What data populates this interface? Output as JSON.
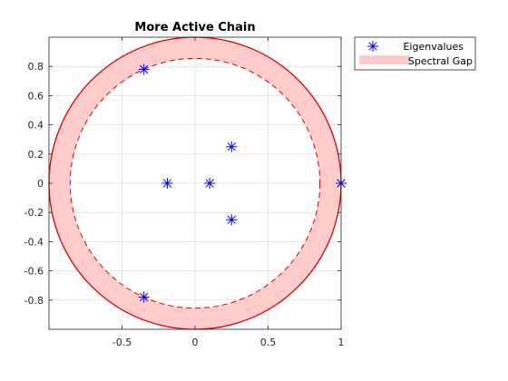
{
  "chart_data": {
    "type": "scatter",
    "title": "More Active Chain",
    "xlabel": "",
    "ylabel": "",
    "xlim": [
      -1,
      1
    ],
    "ylim": [
      -1,
      1
    ],
    "grid": true,
    "x_ticks": [
      -0.5,
      0,
      0.5,
      1
    ],
    "x_tick_labels": [
      "-0.5",
      "0",
      "0.5",
      "1"
    ],
    "y_ticks": [
      -0.8,
      -0.6,
      -0.4,
      -0.2,
      0,
      0.2,
      0.4,
      0.6,
      0.8
    ],
    "y_tick_labels": [
      "-0.8",
      "-0.6",
      "-0.4",
      "-0.2",
      "0",
      "0.2",
      "0.4",
      "0.6",
      "0.8"
    ],
    "legend_position": "outside-top-right",
    "series": [
      {
        "name": "Eigenvalues",
        "marker": "asterisk",
        "color": "#0000ff",
        "points": [
          {
            "x": 1.0,
            "y": 0.0
          },
          {
            "x": 1.0,
            "y": 0.0
          },
          {
            "x": -0.35,
            "y": 0.78
          },
          {
            "x": -0.35,
            "y": -0.78
          },
          {
            "x": 0.25,
            "y": 0.25
          },
          {
            "x": 0.25,
            "y": -0.25
          },
          {
            "x": -0.19,
            "y": 0.0
          },
          {
            "x": 0.1,
            "y": 0.0
          }
        ]
      },
      {
        "name": "Spectral Gap",
        "kind": "annulus",
        "fill_color": "#ffcccc",
        "edge_color": "#dd0000",
        "outer_radius": 1.0,
        "inner_radius": 0.855
      }
    ]
  }
}
